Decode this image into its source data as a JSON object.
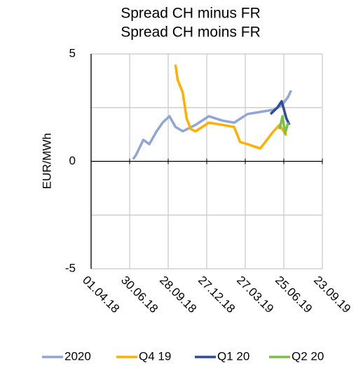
{
  "chart_data": {
    "type": "line",
    "title": [
      "Spread CH minus FR",
      "Spread CH moins FR"
    ],
    "y_label": "EUR/MWh",
    "xlim": [
      "01.04.18",
      "23.09.19"
    ],
    "xticks": [
      "01.04.18",
      "30.06.18",
      "28.09.18",
      "27.12.18",
      "27.03.19",
      "25.06.19",
      "23.09.19"
    ],
    "ylim": [
      -5,
      5
    ],
    "yticks": [
      -5,
      0,
      5
    ],
    "ygrid": [
      -5,
      -2.5,
      0,
      2.5,
      5
    ],
    "grid": true,
    "legend": "bottom",
    "series": [
      {
        "name": "2020",
        "color": "#8fa6d6",
        "x": [
          "08.07.18",
          "15.07.18",
          "01.08.18",
          "15.08.18",
          "01.09.18",
          "15.09.18",
          "01.10.18",
          "15.10.18",
          "01.11.18",
          "01.12.18",
          "01.01.19",
          "01.02.19",
          "01.03.19",
          "01.04.19",
          "01.05.19",
          "01.06.19",
          "20.06.19",
          "05.07.19",
          "12.07.19"
        ],
        "values": [
          0.1,
          0.3,
          1.0,
          0.8,
          1.4,
          1.8,
          2.1,
          1.6,
          1.4,
          1.7,
          2.1,
          1.9,
          1.8,
          2.2,
          2.3,
          2.4,
          2.6,
          3.0,
          3.3
        ]
      },
      {
        "name": "Q4 19",
        "color": "#ffb000",
        "x": [
          "15.10.18",
          "20.10.18",
          "01.11.18",
          "10.11.18",
          "20.11.18",
          "01.12.18",
          "01.01.19",
          "01.02.19",
          "01.03.19",
          "15.03.19",
          "01.04.19",
          "01.05.19",
          "01.06.19",
          "15.06.19",
          "01.07.19"
        ],
        "values": [
          4.5,
          3.8,
          3.2,
          2.0,
          1.5,
          1.4,
          1.8,
          1.7,
          1.6,
          0.9,
          0.8,
          0.6,
          1.4,
          1.7,
          1.2
        ]
      },
      {
        "name": "Q1 20",
        "color": "#2f4b9c",
        "x": [
          "25.05.19",
          "10.06.19",
          "20.06.19",
          "01.07.19",
          "08.07.19"
        ],
        "values": [
          2.2,
          2.5,
          2.8,
          2.0,
          1.7
        ]
      },
      {
        "name": "Q2 20",
        "color": "#7cc146",
        "x": [
          "15.06.19",
          "22.06.19",
          "28.06.19",
          "05.07.19"
        ],
        "values": [
          1.5,
          2.1,
          1.3,
          1.8
        ]
      }
    ]
  }
}
